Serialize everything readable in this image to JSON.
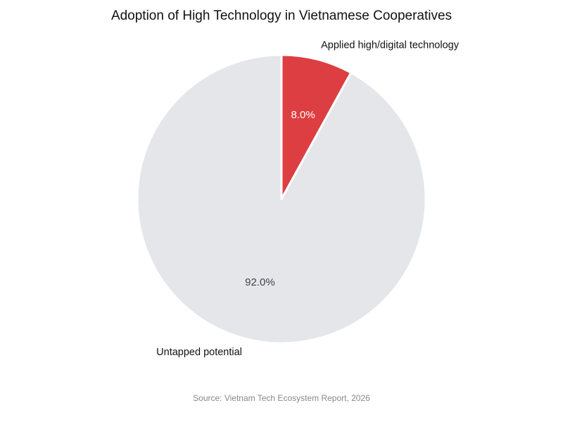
{
  "chart_data": {
    "type": "pie",
    "title": "Adoption of High Technology in Vietnamese Cooperatives",
    "source": "Source: Vietnam Tech Ecosystem Report, 2026",
    "start_angle": "top",
    "direction": "clockwise",
    "slices": [
      {
        "label": "Applied high/digital technology",
        "value": 8.0,
        "value_label": "8.0%",
        "color": "#dc3e42",
        "label_color": "#ffffff"
      },
      {
        "label": "Untapped potential",
        "value": 92.0,
        "value_label": "92.0%",
        "color": "#e5e6ea",
        "label_color": "#3d4450"
      }
    ]
  }
}
